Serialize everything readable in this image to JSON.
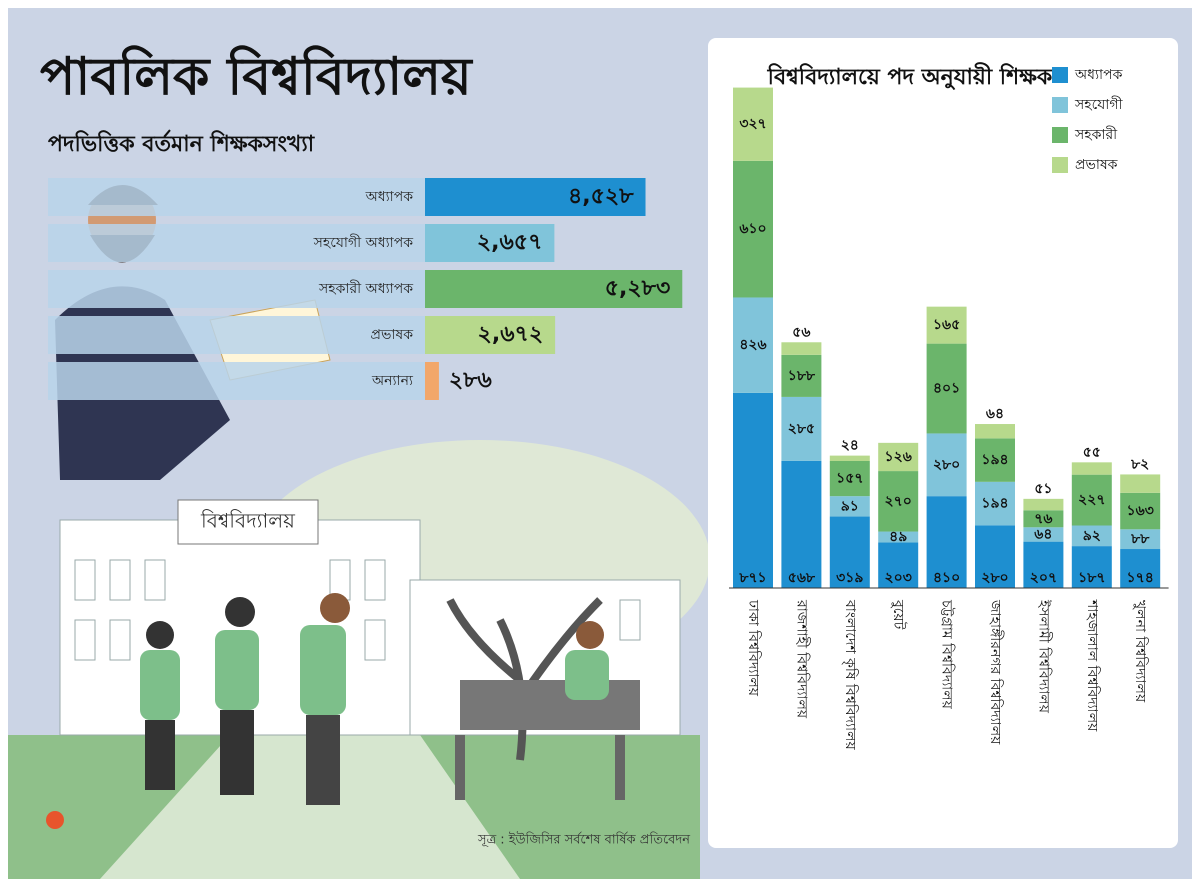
{
  "title": "পাবলিক বিশ্ববিদ্যালয়",
  "subtitle": "পদভিত্তিক বর্তমান শিক্ষকসংখ্যা",
  "illustration": {
    "sign": "বিশ্ববিদ্যালয়"
  },
  "source": "সূত্র : ইউজিসির সর্বশেষ বার্ষিক প্রতিবেদন",
  "chart_data": [
    {
      "type": "hbar",
      "categories": [
        "অধ্যাপক",
        "সহযোগী অধ্যাপক",
        "সহকারী অধ্যাপক",
        "প্রভাষক",
        "অন্যান্য"
      ],
      "values": [
        4528,
        2657,
        5283,
        2672,
        286
      ],
      "value_labels": [
        "৪,৫২৮",
        "২,৬৫৭",
        "৫,২৮৩",
        "২,৬৭২",
        "২৮৬"
      ],
      "colors": [
        "#1e8fd0",
        "#80c4da",
        "#6bb56b",
        "#b7d98c",
        "#f2a76a"
      ]
    },
    {
      "type": "stacked_bar",
      "title": "বিশ্ববিদ্যালয়ে পদ অনুযায়ী শিক্ষক",
      "categories": [
        "ঢাকা বিশ্ববিদ্যালয়",
        "রাজশাহী বিশ্ববিদ্যালয়",
        "বাংলাদেশ কৃষি বিশ্ববিদ্যালয়",
        "বুয়েট",
        "চট্টগ্রাম বিশ্ববিদ্যালয়",
        "জাহাঙ্গীরনগর বিশ্ববিদ্যালয়",
        "ইসলামী বিশ্ববিদ্যালয়",
        "শাহজালাল বিশ্ববিদ্যালয়",
        "খুলনা বিশ্ববিদ্যালয়"
      ],
      "legend": "top-right",
      "series": [
        {
          "name": "অধ্যাপক",
          "color": "#1e8fd0",
          "values": [
            871,
            568,
            319,
            203,
            410,
            280,
            207,
            187,
            174
          ],
          "value_labels": [
            "৮৭১",
            "৫৬৮",
            "৩১৯",
            "২০৩",
            "৪১০",
            "২৮০",
            "২০৭",
            "১৮৭",
            "১৭৪"
          ]
        },
        {
          "name": "সহযোগী",
          "color": "#80c4da",
          "values": [
            426,
            285,
            91,
            49,
            280,
            194,
            64,
            92,
            88
          ],
          "value_labels": [
            "৪২৬",
            "২৮৫",
            "৯১",
            "৪৯",
            "২৮০",
            "১৯৪",
            "৬৪",
            "৯২",
            "৮৮"
          ]
        },
        {
          "name": "সহকারী",
          "color": "#6bb56b",
          "values": [
            610,
            188,
            157,
            270,
            401,
            194,
            76,
            227,
            163
          ],
          "value_labels": [
            "৬১০",
            "১৮৮",
            "১৫৭",
            "২৭০",
            "৪০১",
            "১৯৪",
            "৭৬",
            "২২৭",
            "১৬৩"
          ]
        },
        {
          "name": "প্রভাষক",
          "color": "#b7d98c",
          "values": [
            327,
            56,
            24,
            126,
            165,
            64,
            51,
            55,
            82
          ],
          "value_labels": [
            "৩২৭",
            "৫৬",
            "২৪",
            "১২৬",
            "১৬৫",
            "৬৪",
            "৫১",
            "৫৫",
            "৮২"
          ]
        }
      ]
    }
  ]
}
